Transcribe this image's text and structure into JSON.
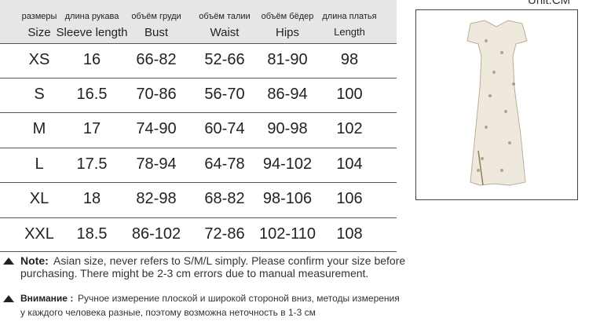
{
  "unit": "Unit:CM",
  "table": {
    "headers_ru": [
      "размеры",
      "длина рукава",
      "объём груди",
      "объём талии",
      "объём бёдер",
      "длина платья"
    ],
    "headers_en": [
      "Size",
      "Sleeve length",
      "Bust",
      "Waist",
      "Hips",
      "Length"
    ],
    "rows": [
      [
        "XS",
        "16",
        "66-82",
        "52-66",
        "81-90",
        "98"
      ],
      [
        "S",
        "16.5",
        "70-86",
        "56-70",
        "86-94",
        "100"
      ],
      [
        "M",
        "17",
        "74-90",
        "60-74",
        "90-98",
        "102"
      ],
      [
        "L",
        "17.5",
        "78-94",
        "64-78",
        "94-102",
        "104"
      ],
      [
        "XL",
        "18",
        "82-98",
        "68-82",
        "98-106",
        "106"
      ],
      [
        "XXL",
        "18.5",
        "86-102",
        "72-86",
        "102-110",
        "108"
      ]
    ]
  },
  "notes": [
    {
      "label": "Note:",
      "lines": [
        "Asian size, never refers to S/M/L simply. Please confirm your size before",
        "purchasing. There might be 2-3 cm errors due to manual measurement."
      ]
    },
    {
      "label": "Внимание :",
      "lines": [
        "Ручное измерение плоской и широкой стороной вниз, методы измерения",
        "у каждого человека разные, поэтому возможна неточность в 1-3 см"
      ]
    }
  ]
}
